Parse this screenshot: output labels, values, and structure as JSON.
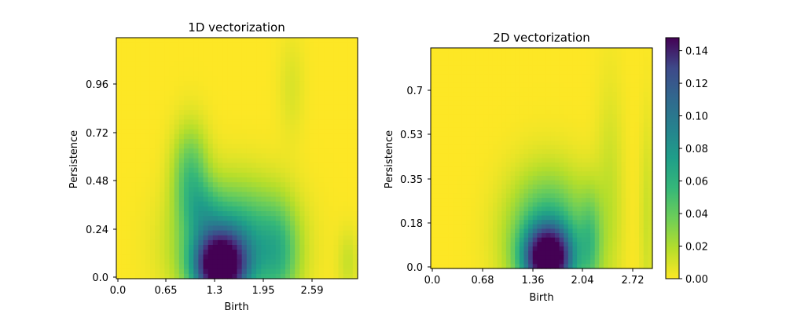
{
  "chart_data": [
    {
      "type": "heatmap",
      "title": "1D vectorization",
      "xlabel": "Birth",
      "ylabel": "Persistence",
      "x_ticks": [
        "0.0",
        "0.65",
        "1.3",
        "1.95",
        "2.59"
      ],
      "y_ticks": [
        "0.0",
        "0.24",
        "0.48",
        "0.72",
        "0.96"
      ],
      "xlim": [
        0.0,
        3.1
      ],
      "ylim": [
        0.0,
        1.2
      ],
      "colormap": "viridis",
      "vmin": 0.0,
      "vmax": 0.15,
      "blobs": [
        {
          "cx": 1.33,
          "cy": 0.06,
          "sx": 0.22,
          "sy": 0.11,
          "amp": 0.148
        },
        {
          "cx": 1.5,
          "cy": 0.17,
          "sx": 0.45,
          "sy": 0.2,
          "amp": 0.07
        },
        {
          "cx": 0.95,
          "cy": 0.52,
          "sx": 0.16,
          "sy": 0.17,
          "amp": 0.04
        },
        {
          "cx": 1.12,
          "cy": 0.34,
          "sx": 0.16,
          "sy": 0.1,
          "amp": 0.02
        },
        {
          "cx": 2.1,
          "cy": 0.12,
          "sx": 0.18,
          "sy": 0.18,
          "amp": 0.03
        },
        {
          "cx": 2.25,
          "cy": 0.95,
          "sx": 0.12,
          "sy": 0.18,
          "amp": 0.008
        },
        {
          "cx": 2.98,
          "cy": 0.08,
          "sx": 0.1,
          "sy": 0.12,
          "amp": 0.012
        }
      ]
    },
    {
      "type": "heatmap",
      "title": "2D vectorization",
      "xlabel": "Birth",
      "ylabel": "Persistence",
      "x_ticks": [
        "0.0",
        "0.68",
        "1.36",
        "2.04",
        "2.72"
      ],
      "y_ticks": [
        "0.0",
        "0.18",
        "0.35",
        "0.53",
        "0.7"
      ],
      "xlim": [
        0.0,
        3.4
      ],
      "ylim": [
        0.0,
        0.86
      ],
      "colormap": "viridis",
      "vmin": 0.0,
      "vmax": 0.15,
      "blobs": [
        {
          "cx": 1.8,
          "cy": 0.04,
          "sx": 0.24,
          "sy": 0.08,
          "amp": 0.148
        },
        {
          "cx": 1.8,
          "cy": 0.12,
          "sx": 0.42,
          "sy": 0.17,
          "amp": 0.06
        },
        {
          "cx": 2.45,
          "cy": 0.1,
          "sx": 0.12,
          "sy": 0.14,
          "amp": 0.03
        },
        {
          "cx": 2.75,
          "cy": 0.3,
          "sx": 0.15,
          "sy": 0.3,
          "amp": 0.012
        },
        {
          "cx": 3.32,
          "cy": 0.2,
          "sx": 0.08,
          "sy": 0.28,
          "amp": 0.012
        }
      ]
    }
  ],
  "colorbar": {
    "ticks": [
      "0.00",
      "0.02",
      "0.04",
      "0.06",
      "0.08",
      "0.10",
      "0.12",
      "0.14"
    ],
    "tick_values": [
      0.0,
      0.02,
      0.04,
      0.06,
      0.08,
      0.1,
      0.12,
      0.14
    ],
    "vmin": 0.0,
    "vmax": 0.148
  }
}
